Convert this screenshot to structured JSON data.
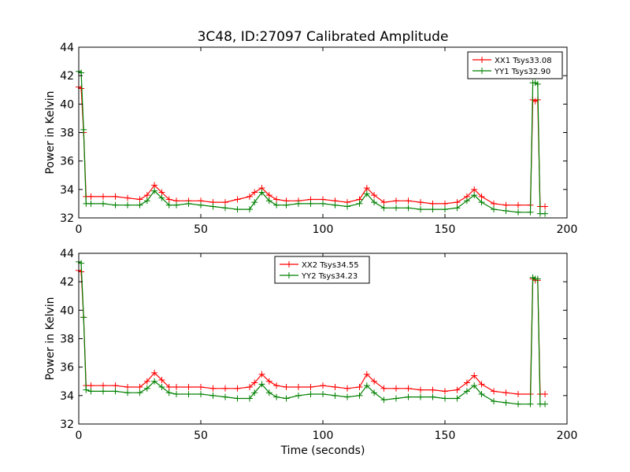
{
  "figure": {
    "title": "3C48, ID:27097 Calibrated Amplitude",
    "xlabel": "Time (seconds)"
  },
  "chart_data": [
    {
      "type": "line",
      "title": "3C48, ID:27097 Calibrated Amplitude",
      "xlabel": "",
      "ylabel": "Power in Kelvin",
      "xlim": [
        0,
        200
      ],
      "ylim": [
        32,
        44
      ],
      "xticks": [
        "0",
        "50",
        "100",
        "150",
        "200"
      ],
      "yticks": [
        "32",
        "34",
        "36",
        "38",
        "40",
        "42",
        "44"
      ],
      "grid": false,
      "legend_position": "top-right",
      "series": [
        {
          "name": "XX1 Tsys33.08",
          "color": "#ff0000",
          "x": [
            0,
            1,
            2,
            3,
            5,
            10,
            15,
            20,
            25,
            28,
            31,
            34,
            37,
            40,
            45,
            50,
            55,
            60,
            65,
            70,
            72,
            75,
            78,
            81,
            85,
            90,
            95,
            100,
            105,
            110,
            115,
            118,
            121,
            125,
            130,
            135,
            140,
            145,
            150,
            155,
            159,
            162,
            165,
            170,
            175,
            180,
            185,
            186,
            187,
            188,
            189,
            191
          ],
          "y": [
            41.2,
            41.1,
            38,
            33.5,
            33.5,
            33.5,
            33.5,
            33.4,
            33.3,
            33.6,
            34.3,
            33.8,
            33.3,
            33.2,
            33.2,
            33.2,
            33.1,
            33.1,
            33.3,
            33.5,
            33.8,
            34.1,
            33.6,
            33.3,
            33.2,
            33.2,
            33.3,
            33.3,
            33.2,
            33.1,
            33.3,
            34.1,
            33.6,
            33.1,
            33.2,
            33.2,
            33.1,
            33.0,
            33.0,
            33.1,
            33.5,
            34.0,
            33.5,
            33.0,
            32.9,
            32.9,
            32.9,
            40.3,
            40.2,
            40.3,
            32.8,
            32.8
          ]
        },
        {
          "name": "YY1 Tsys32.90",
          "color": "#008000",
          "x": [
            0,
            1,
            2,
            3,
            5,
            10,
            15,
            20,
            25,
            28,
            31,
            34,
            37,
            40,
            45,
            50,
            55,
            60,
            65,
            70,
            72,
            75,
            78,
            81,
            85,
            90,
            95,
            100,
            105,
            110,
            115,
            118,
            121,
            125,
            130,
            135,
            140,
            145,
            150,
            155,
            159,
            162,
            165,
            170,
            175,
            180,
            185,
            186,
            187,
            188,
            189,
            191
          ],
          "y": [
            42.3,
            42.2,
            38.2,
            33.0,
            33.0,
            33.0,
            32.9,
            32.9,
            32.9,
            33.2,
            33.9,
            33.4,
            32.9,
            32.9,
            33.0,
            32.9,
            32.8,
            32.7,
            32.6,
            32.6,
            33.1,
            33.8,
            33.2,
            32.9,
            32.9,
            33.0,
            33.0,
            33.0,
            32.9,
            32.8,
            33.0,
            33.7,
            33.1,
            32.7,
            32.7,
            32.7,
            32.6,
            32.6,
            32.6,
            32.7,
            33.2,
            33.6,
            33.1,
            32.6,
            32.5,
            32.4,
            32.4,
            41.5,
            41.5,
            41.4,
            32.3,
            32.3
          ]
        }
      ]
    },
    {
      "type": "line",
      "title": "",
      "xlabel": "Time (seconds)",
      "ylabel": "Power in Kelvin",
      "xlim": [
        0,
        200
      ],
      "ylim": [
        32,
        44
      ],
      "xticks": [
        "0",
        "50",
        "100",
        "150",
        "200"
      ],
      "yticks": [
        "32",
        "34",
        "36",
        "38",
        "40",
        "42",
        "44"
      ],
      "grid": false,
      "legend_position": "top-center",
      "series": [
        {
          "name": "XX2 Tsys34.55",
          "color": "#ff0000",
          "x": [
            0,
            1,
            2,
            3,
            5,
            10,
            15,
            20,
            25,
            28,
            31,
            34,
            37,
            40,
            45,
            50,
            55,
            60,
            65,
            70,
            72,
            75,
            78,
            81,
            85,
            90,
            95,
            100,
            105,
            110,
            115,
            118,
            121,
            125,
            130,
            135,
            140,
            145,
            150,
            155,
            159,
            162,
            165,
            170,
            175,
            180,
            185,
            186,
            187,
            188,
            189,
            191
          ],
          "y": [
            42.8,
            42.7,
            39.5,
            34.7,
            34.7,
            34.7,
            34.7,
            34.6,
            34.6,
            35.0,
            35.6,
            35.1,
            34.6,
            34.6,
            34.6,
            34.6,
            34.5,
            34.5,
            34.5,
            34.6,
            34.9,
            35.5,
            35.0,
            34.7,
            34.6,
            34.6,
            34.6,
            34.7,
            34.6,
            34.5,
            34.6,
            35.5,
            35.0,
            34.5,
            34.5,
            34.5,
            34.4,
            34.4,
            34.3,
            34.4,
            34.9,
            35.4,
            34.8,
            34.3,
            34.2,
            34.1,
            34.1,
            42.2,
            42.1,
            42.1,
            34.1,
            34.1
          ]
        },
        {
          "name": "YY2 Tsys34.23",
          "color": "#008000",
          "x": [
            0,
            1,
            2,
            3,
            5,
            10,
            15,
            20,
            25,
            28,
            31,
            34,
            37,
            40,
            45,
            50,
            55,
            60,
            65,
            70,
            72,
            75,
            78,
            81,
            85,
            90,
            95,
            100,
            105,
            110,
            115,
            118,
            121,
            125,
            130,
            135,
            140,
            145,
            150,
            155,
            159,
            162,
            165,
            170,
            175,
            180,
            185,
            186,
            187,
            188,
            189,
            191
          ],
          "y": [
            43.4,
            43.3,
            39.5,
            34.4,
            34.3,
            34.3,
            34.3,
            34.2,
            34.2,
            34.5,
            35.0,
            34.6,
            34.2,
            34.1,
            34.1,
            34.1,
            34.0,
            33.9,
            33.8,
            33.8,
            34.2,
            34.8,
            34.2,
            33.9,
            33.8,
            34.0,
            34.1,
            34.1,
            34.0,
            33.9,
            34.0,
            34.7,
            34.2,
            33.7,
            33.8,
            33.9,
            33.9,
            33.9,
            33.8,
            33.8,
            34.3,
            34.7,
            34.1,
            33.6,
            33.5,
            33.4,
            33.4,
            42.3,
            42.2,
            42.2,
            33.4,
            33.4
          ]
        }
      ]
    }
  ]
}
